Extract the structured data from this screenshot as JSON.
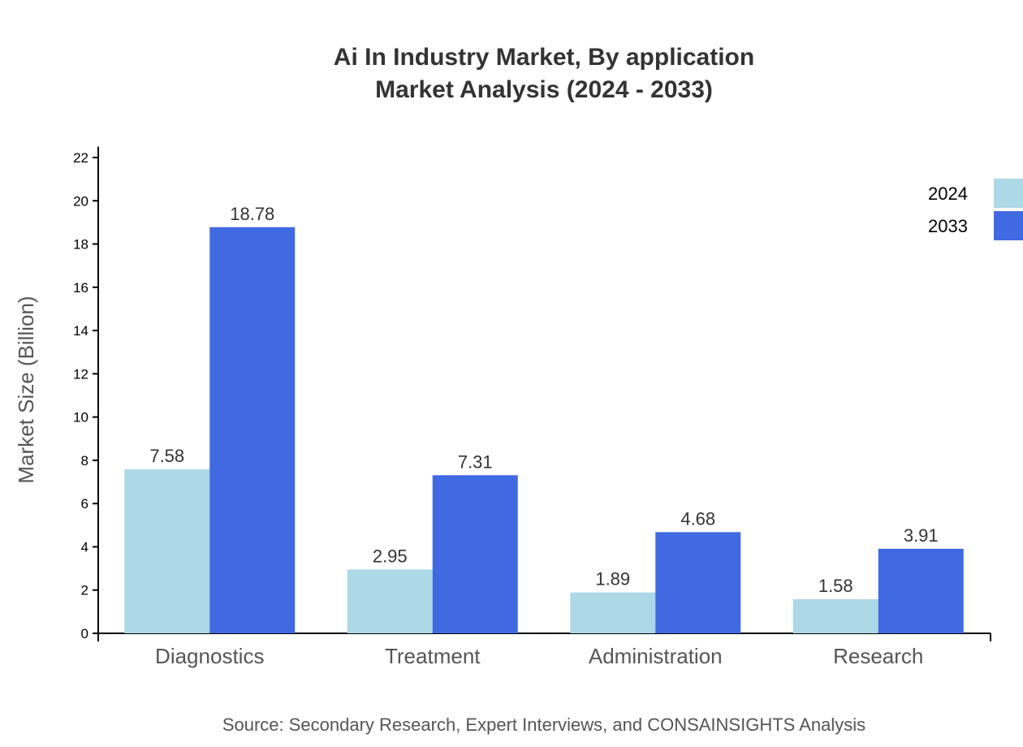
{
  "chart_data": {
    "type": "bar",
    "title": [
      "Ai In Industry Market, By application",
      "Market Analysis (2024 - 2033)"
    ],
    "xlabel": "",
    "ylabel": "Market Size (Billion)",
    "ylim": [
      0,
      22.5
    ],
    "yticks": [
      0,
      2,
      4,
      6,
      8,
      10,
      12,
      14,
      16,
      18,
      20,
      22
    ],
    "grid": false,
    "legend_position": "top-right",
    "categories": [
      "Diagnostics",
      "Treatment",
      "Administration",
      "Research"
    ],
    "series": [
      {
        "name": "2024",
        "color": "#add8e6",
        "values": [
          7.58,
          2.95,
          1.89,
          1.58
        ]
      },
      {
        "name": "2033",
        "color": "#4169e1",
        "values": [
          18.78,
          7.31,
          4.68,
          3.91
        ]
      }
    ],
    "source": "Source: Secondary Research, Expert Interviews, and CONSAINSIGHTS Analysis"
  }
}
